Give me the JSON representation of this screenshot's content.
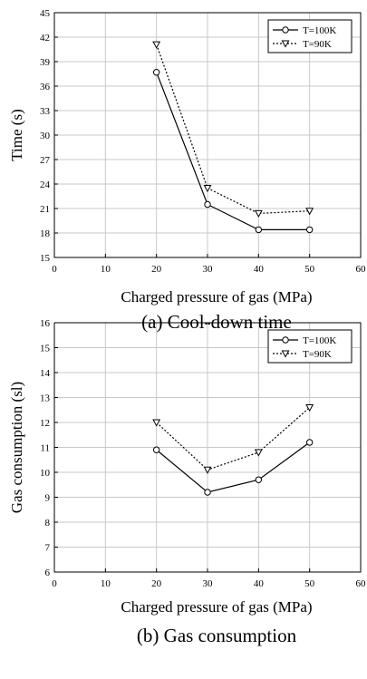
{
  "chart_data": [
    {
      "type": "line",
      "caption": "(a) Cool-down time",
      "xlabel": "Charged pressure of gas (MPa)",
      "ylabel": "Time (s)",
      "xlim": [
        0,
        60
      ],
      "ylim": [
        15,
        45
      ],
      "xticks": [
        0,
        10,
        20,
        30,
        40,
        50,
        60
      ],
      "yticks": [
        15,
        18,
        21,
        24,
        27,
        30,
        33,
        36,
        39,
        42,
        45
      ],
      "grid": true,
      "legend_position": "top-right",
      "series": [
        {
          "name": "T=100K",
          "marker": "circle",
          "line": "solid",
          "x": [
            20,
            30,
            40,
            50
          ],
          "y": [
            37.7,
            21.5,
            18.4,
            18.4
          ]
        },
        {
          "name": "T=90K",
          "marker": "triangle-down",
          "line": "dotted",
          "x": [
            20,
            30,
            40,
            50
          ],
          "y": [
            41.1,
            23.5,
            20.4,
            20.7
          ]
        }
      ]
    },
    {
      "type": "line",
      "caption": "(b) Gas consumption",
      "xlabel": "Charged pressure of gas (MPa)",
      "ylabel": "Gas consumption (sl)",
      "xlim": [
        0,
        60
      ],
      "ylim": [
        6,
        16
      ],
      "xticks": [
        0,
        10,
        20,
        30,
        40,
        50,
        60
      ],
      "yticks": [
        6,
        7,
        8,
        9,
        10,
        11,
        12,
        13,
        14,
        15,
        16
      ],
      "grid": true,
      "legend_position": "top-right",
      "series": [
        {
          "name": "T=100K",
          "marker": "circle",
          "line": "solid",
          "x": [
            20,
            30,
            40,
            50
          ],
          "y": [
            10.9,
            9.2,
            9.7,
            11.2
          ]
        },
        {
          "name": "T=90K",
          "marker": "triangle-down",
          "line": "dotted",
          "x": [
            20,
            30,
            40,
            50
          ],
          "y": [
            12.0,
            10.1,
            10.8,
            12.6
          ]
        }
      ]
    }
  ]
}
